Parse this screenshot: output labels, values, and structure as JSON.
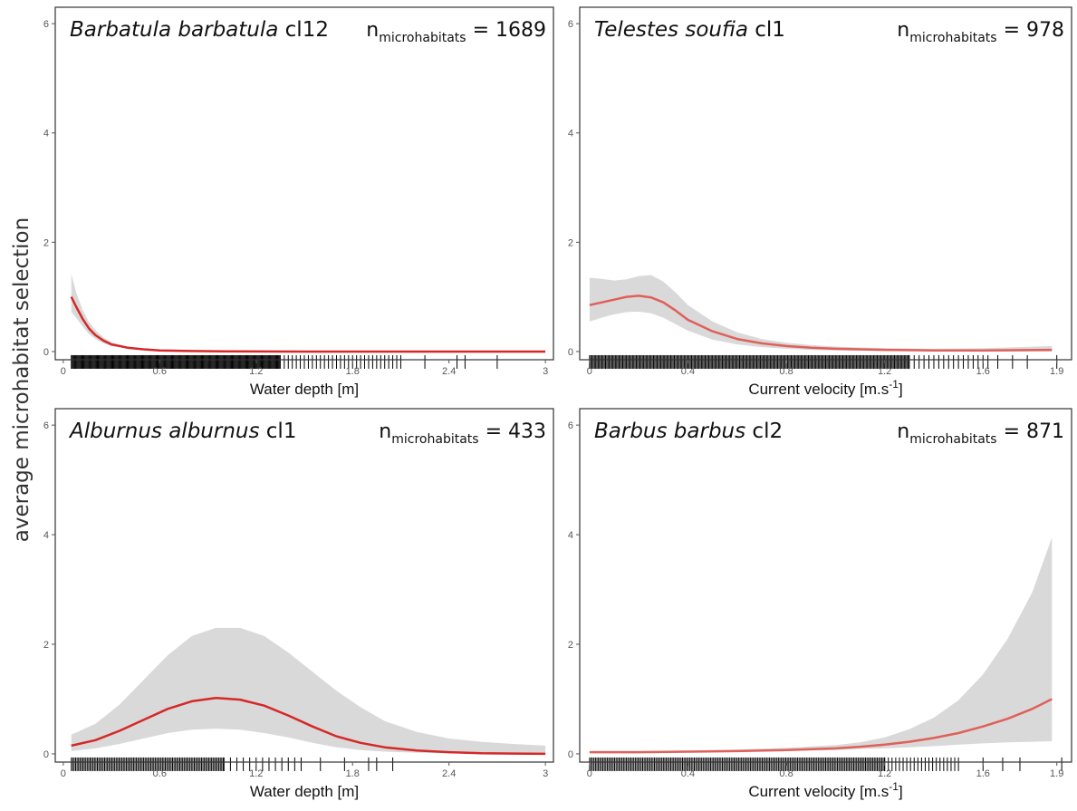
{
  "y_axis_label": "average microhabitat selection",
  "chart_data": [
    {
      "type": "line",
      "title": "Barbatula barbatula",
      "title_suffix": " cl12",
      "n_label": "n",
      "n_sub": "microhabitats",
      "n_value": "= 1689",
      "xlabel": "Water depth [m]",
      "xlabel_sup": "",
      "xlabel_end": "",
      "xlim": [
        -0.05,
        3.05
      ],
      "ylim": [
        -0.15,
        6.3
      ],
      "xticks": [
        "0",
        "0.6",
        "1.2",
        "1.8",
        "2.4",
        "3"
      ],
      "yticks": [
        "0",
        "2",
        "4",
        "6"
      ],
      "line_color": "#d62828",
      "band_color": "#d9d9d9",
      "series": [
        {
          "x": [
            0.05,
            0.08,
            0.12,
            0.16,
            0.2,
            0.25,
            0.3,
            0.4,
            0.5,
            0.6,
            0.8,
            1.0,
            1.5,
            2.0,
            2.5,
            3.0
          ],
          "y": [
            1.0,
            0.82,
            0.6,
            0.42,
            0.3,
            0.2,
            0.13,
            0.07,
            0.04,
            0.02,
            0.01,
            0.005,
            0.0,
            0.0,
            0.0,
            0.0
          ],
          "lower": [
            0.72,
            0.62,
            0.46,
            0.32,
            0.23,
            0.15,
            0.1,
            0.05,
            0.03,
            0.015,
            0.008,
            0.004,
            0.0,
            0.0,
            0.0,
            0.0
          ],
          "upper": [
            1.42,
            1.08,
            0.76,
            0.54,
            0.39,
            0.26,
            0.17,
            0.09,
            0.05,
            0.03,
            0.015,
            0.007,
            0.0,
            0.0,
            0.0,
            0.0
          ]
        }
      ],
      "rug": [
        {
          "from": 0.05,
          "to": 1.35,
          "step": 0.006
        },
        {
          "from": 1.35,
          "to": 2.1,
          "step": 0.025
        },
        {
          "list": [
            2.25,
            2.45,
            2.5,
            2.7
          ]
        }
      ]
    },
    {
      "type": "line",
      "title": "Telestes soufia",
      "title_suffix": " cl1",
      "n_label": "n",
      "n_sub": "microhabitats",
      "n_value": "= 978",
      "xlabel": "Current velocity [m.s",
      "xlabel_sup": "-1",
      "xlabel_end": "]",
      "xlim": [
        -0.04,
        1.96
      ],
      "ylim": [
        -0.15,
        6.3
      ],
      "xticks": [
        "0",
        "0.4",
        "0.8",
        "1.2",
        "1.6",
        "1.9"
      ],
      "yticks": [
        "0",
        "2",
        "4",
        "6"
      ],
      "line_color": "#e0605a",
      "band_color": "#d9d9d9",
      "series": [
        {
          "x": [
            0.0,
            0.05,
            0.1,
            0.15,
            0.2,
            0.25,
            0.3,
            0.35,
            0.4,
            0.5,
            0.6,
            0.7,
            0.8,
            0.9,
            1.0,
            1.2,
            1.4,
            1.6,
            1.88
          ],
          "y": [
            0.85,
            0.9,
            0.95,
            1.0,
            1.02,
            0.99,
            0.9,
            0.75,
            0.58,
            0.37,
            0.23,
            0.15,
            0.1,
            0.07,
            0.05,
            0.03,
            0.02,
            0.02,
            0.03
          ],
          "lower": [
            0.55,
            0.62,
            0.68,
            0.72,
            0.73,
            0.7,
            0.62,
            0.5,
            0.38,
            0.22,
            0.13,
            0.08,
            0.05,
            0.03,
            0.02,
            0.01,
            0.0,
            0.0,
            0.0
          ],
          "upper": [
            1.35,
            1.33,
            1.3,
            1.32,
            1.38,
            1.4,
            1.28,
            1.08,
            0.85,
            0.55,
            0.35,
            0.23,
            0.16,
            0.12,
            0.09,
            0.06,
            0.05,
            0.06,
            0.1
          ]
        }
      ],
      "rug": [
        {
          "from": 0.0,
          "to": 1.3,
          "step": 0.005
        },
        {
          "from": 1.3,
          "to": 1.62,
          "step": 0.02
        },
        {
          "list": [
            1.66,
            1.72,
            1.78,
            1.9
          ]
        }
      ]
    },
    {
      "type": "line",
      "title": "Alburnus alburnus",
      "title_suffix": " cl1",
      "n_label": "n",
      "n_sub": "microhabitats",
      "n_value": "= 433",
      "xlabel": "Water depth [m]",
      "xlabel_sup": "",
      "xlabel_end": "",
      "xlim": [
        -0.05,
        3.05
      ],
      "ylim": [
        -0.15,
        6.3
      ],
      "xticks": [
        "0",
        "0.6",
        "1.2",
        "1.8",
        "2.4",
        "3"
      ],
      "yticks": [
        "0",
        "2",
        "4",
        "6"
      ],
      "line_color": "#d62828",
      "band_color": "#d9d9d9",
      "series": [
        {
          "x": [
            0.05,
            0.2,
            0.35,
            0.5,
            0.65,
            0.8,
            0.95,
            1.1,
            1.25,
            1.4,
            1.55,
            1.7,
            1.85,
            2.0,
            2.2,
            2.4,
            2.6,
            2.8,
            3.0
          ],
          "y": [
            0.15,
            0.25,
            0.42,
            0.62,
            0.82,
            0.96,
            1.02,
            0.99,
            0.88,
            0.7,
            0.5,
            0.32,
            0.2,
            0.12,
            0.06,
            0.03,
            0.01,
            0.005,
            0.0
          ],
          "lower": [
            0.05,
            0.1,
            0.18,
            0.28,
            0.38,
            0.44,
            0.46,
            0.44,
            0.38,
            0.3,
            0.2,
            0.12,
            0.07,
            0.04,
            0.02,
            0.01,
            0.0,
            0.0,
            0.0
          ],
          "upper": [
            0.35,
            0.55,
            0.9,
            1.35,
            1.8,
            2.15,
            2.3,
            2.3,
            2.15,
            1.85,
            1.5,
            1.15,
            0.85,
            0.6,
            0.4,
            0.28,
            0.22,
            0.18,
            0.15
          ]
        }
      ],
      "rug": [
        {
          "from": 0.05,
          "to": 1.0,
          "step": 0.009
        },
        {
          "from": 1.0,
          "to": 1.5,
          "step": 0.04
        },
        {
          "list": [
            1.6,
            1.75,
            1.9,
            1.95,
            2.05
          ]
        }
      ]
    },
    {
      "type": "line",
      "title": "Barbus barbus",
      "title_suffix": " cl2",
      "n_label": "n",
      "n_sub": "microhabitats",
      "n_value": "= 871",
      "xlabel": "Current velocity [m.s",
      "xlabel_sup": "-1",
      "xlabel_end": "]",
      "xlim": [
        -0.04,
        1.96
      ],
      "ylim": [
        -0.15,
        6.3
      ],
      "xticks": [
        "0",
        "0.4",
        "0.8",
        "1.2",
        "1.6",
        "1.9"
      ],
      "yticks": [
        "0",
        "2",
        "4",
        "6"
      ],
      "line_color": "#e0605a",
      "band_color": "#d9d9d9",
      "series": [
        {
          "x": [
            0.0,
            0.2,
            0.4,
            0.6,
            0.8,
            1.0,
            1.1,
            1.2,
            1.3,
            1.4,
            1.5,
            1.6,
            1.7,
            1.8,
            1.88
          ],
          "y": [
            0.03,
            0.03,
            0.04,
            0.05,
            0.07,
            0.1,
            0.13,
            0.17,
            0.22,
            0.29,
            0.38,
            0.5,
            0.64,
            0.82,
            1.0
          ],
          "lower": [
            0.02,
            0.02,
            0.03,
            0.04,
            0.05,
            0.07,
            0.09,
            0.1,
            0.12,
            0.14,
            0.17,
            0.19,
            0.21,
            0.22,
            0.23
          ],
          "upper": [
            0.05,
            0.05,
            0.06,
            0.08,
            0.11,
            0.16,
            0.21,
            0.3,
            0.45,
            0.66,
            0.98,
            1.45,
            2.1,
            2.95,
            3.95
          ]
        }
      ],
      "rug": [
        {
          "from": 0.0,
          "to": 1.2,
          "step": 0.006
        },
        {
          "from": 1.2,
          "to": 1.5,
          "step": 0.015
        },
        {
          "list": [
            1.6,
            1.68,
            1.75,
            1.92
          ]
        }
      ]
    }
  ]
}
